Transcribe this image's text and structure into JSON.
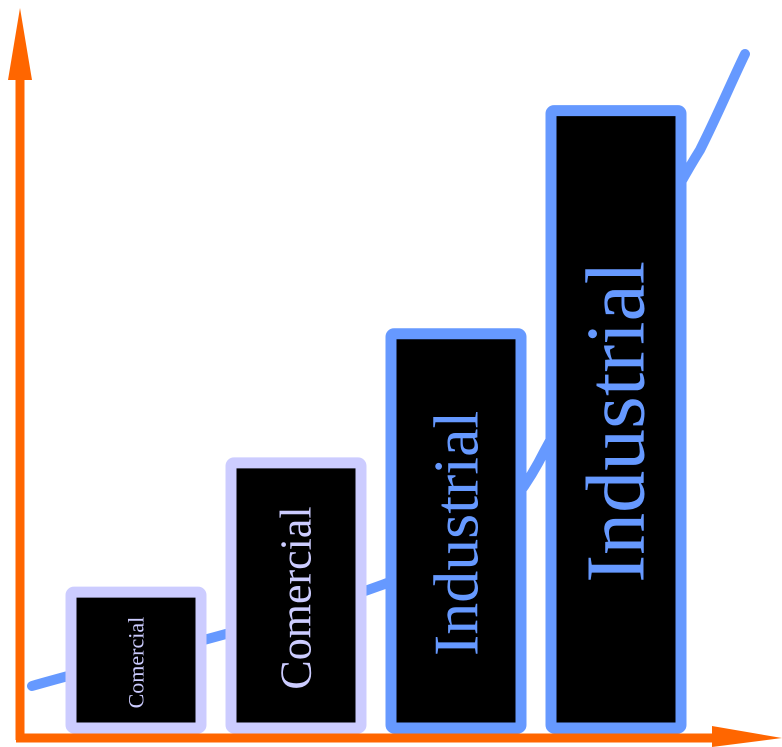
{
  "chart_data": {
    "type": "bar",
    "categories": [
      "Comercial",
      "Comercial",
      "Industrial",
      "Industrial"
    ],
    "values": [
      1.2,
      2.3,
      3.4,
      5.3
    ],
    "ylim": [
      0,
      6.2
    ],
    "grid": false,
    "legend": "none",
    "trend_line": true,
    "colors": {
      "axis": "#ff6600",
      "bar_fill": "#000000",
      "comercial_border": "#ccccff",
      "industrial_border": "#6699ff",
      "trend_line": "#6699ff",
      "comercial_text": "#ccccff",
      "industrial_text": "#6699ff"
    }
  }
}
